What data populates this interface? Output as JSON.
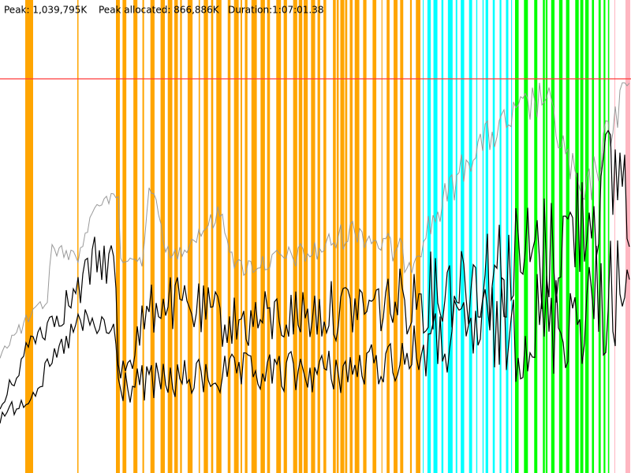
{
  "header": {
    "peak": "Peak: 1,039,795K",
    "peak_allocated": "Peak allocated: 866,886K",
    "duration": "Duration:1:07:01.38"
  }
}
